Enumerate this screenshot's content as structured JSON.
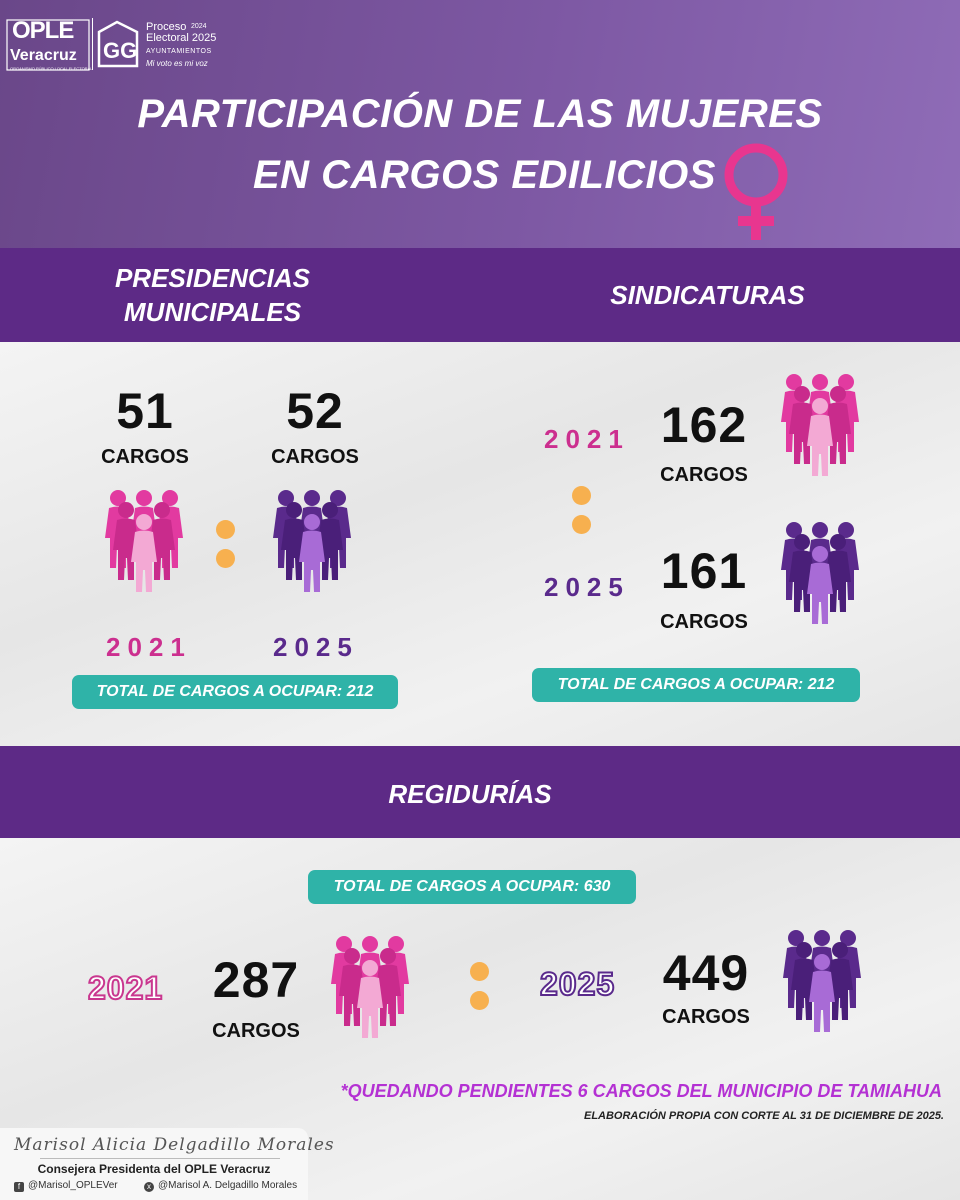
{
  "header": {
    "logo": {
      "ople": "OPLE",
      "veracruz": "Veracruz",
      "small": "ORGANISMO PÚBLICO LOCAL ELECTORAL",
      "proceso": "Proceso",
      "electoral": "Electoral 2025",
      "year": "2024",
      "ayuntamientos": "AYUNTAMIENTOS",
      "voto": "Mi voto es mi voz"
    },
    "title_line1": "PARTICIPACIÓN DE LAS MUJERES",
    "title_line2": "EN CARGOS EDILICIOS"
  },
  "presidencias": {
    "title_line1": "PRESIDENCIAS",
    "title_line2": "MUNICIPALES",
    "val_2021": "51",
    "val_2025": "52",
    "cargos": "CARGOS",
    "year_2021": "2021",
    "year_2025": "2025",
    "total": "TOTAL DE CARGOS A OCUPAR: 212"
  },
  "sindicaturas": {
    "title": "SINDICATURAS",
    "val_2021": "162",
    "val_2025": "161",
    "cargos": "CARGOS",
    "year_2021": "2021",
    "year_2025": "2025",
    "total": "TOTAL DE CARGOS A OCUPAR: 212"
  },
  "regidurias": {
    "title": "REGIDURÍAS",
    "total": "TOTAL DE CARGOS A OCUPAR: 630",
    "year_2021": "2021",
    "year_2025": "2025",
    "val_2021": "287",
    "val_2025": "449",
    "cargos": "CARGOS"
  },
  "footer": {
    "note": "*QUEDANDO PENDIENTES 6 CARGOS DEL MUNICIPIO DE TAMIAHUA",
    "elaboracion": "ELABORACIÓN PROPIA CON CORTE AL 31 DE DICIEMBRE DE 2025.",
    "signature": "Marisol Alicia Delgadillo Morales",
    "role": "Consejera Presidenta del OPLE Veracruz",
    "facebook": "@Marisol_OPLEVer",
    "x_handle": "@Marisol A. Delgadillo Morales"
  },
  "colors": {
    "pink": "#cc2f8f",
    "purple": "#5a2a8c",
    "band": "#5d2a86",
    "teal": "#2fb3a8",
    "dot": "#f7b04f"
  },
  "icons": [
    "venus-symbol-icon",
    "women-group-pink-icon",
    "women-group-purple-icon",
    "facebook-icon",
    "x-icon"
  ]
}
